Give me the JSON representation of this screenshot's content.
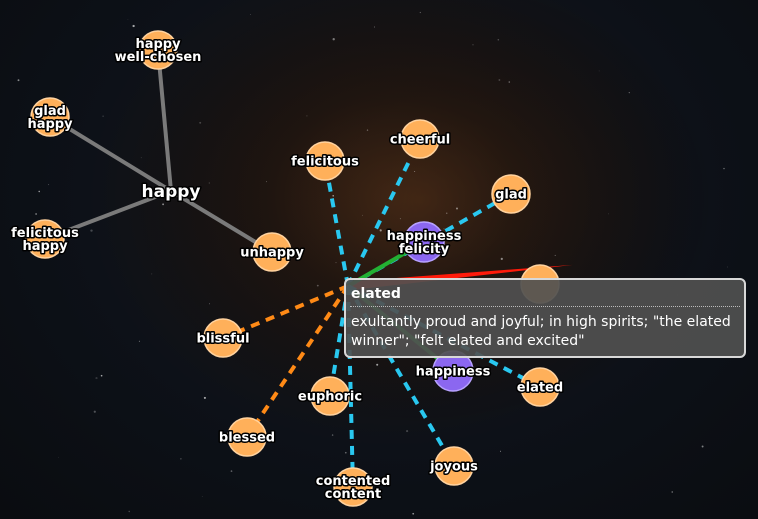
{
  "graph": {
    "colors": {
      "hub_edge": "#7a7a7a",
      "synonym_edge": "#29c8f0",
      "similar_edge": "#ff8a16",
      "derived_edge": "#23b033",
      "antonym_edge": "#ff1a0a",
      "word_node": "#ffb05a",
      "noun_node": "#8b67f0"
    },
    "nodes": [
      {
        "id": "happy_hub",
        "lines": [
          "happy"
        ],
        "kind": "hub"
      },
      {
        "id": "happy_wellchosen",
        "lines": [
          "happy",
          "well-chosen"
        ],
        "kind": "word"
      },
      {
        "id": "glad_happy",
        "lines": [
          "glad",
          "happy"
        ],
        "kind": "word"
      },
      {
        "id": "felicitous_happy",
        "lines": [
          "felicitous",
          "happy"
        ],
        "kind": "word"
      },
      {
        "id": "unhappy",
        "lines": [
          "unhappy"
        ],
        "kind": "word"
      },
      {
        "id": "felicitous",
        "lines": [
          "felicitous"
        ],
        "kind": "word"
      },
      {
        "id": "cheerful",
        "lines": [
          "cheerful"
        ],
        "kind": "word"
      },
      {
        "id": "glad",
        "lines": [
          "glad"
        ],
        "kind": "word"
      },
      {
        "id": "happiness_felicity",
        "lines": [
          "happiness",
          "felicity"
        ],
        "kind": "noun"
      },
      {
        "id": "hidden_right",
        "lines": [],
        "kind": "word"
      },
      {
        "id": "blissful",
        "lines": [
          "blissful"
        ],
        "kind": "word"
      },
      {
        "id": "euphoric",
        "lines": [
          "euphoric"
        ],
        "kind": "word"
      },
      {
        "id": "happiness",
        "lines": [
          "happiness"
        ],
        "kind": "noun"
      },
      {
        "id": "elated_node",
        "lines": [
          "elated"
        ],
        "kind": "word"
      },
      {
        "id": "blessed",
        "lines": [
          "blessed"
        ],
        "kind": "word"
      },
      {
        "id": "joyous",
        "lines": [
          "joyous"
        ],
        "kind": "word"
      },
      {
        "id": "contented_content",
        "lines": [
          "contented",
          "content"
        ],
        "kind": "word"
      }
    ],
    "edges": [
      {
        "from": "happy_hub",
        "to": "happy_wellchosen",
        "type": "hub"
      },
      {
        "from": "happy_hub",
        "to": "glad_happy",
        "type": "hub"
      },
      {
        "from": "happy_hub",
        "to": "felicitous_happy",
        "type": "hub"
      },
      {
        "from": "happy_hub",
        "to": "unhappy",
        "type": "hub"
      },
      {
        "from": "center",
        "to": "unhappy",
        "type": "antonym"
      },
      {
        "from": "center",
        "to": "felicitous",
        "type": "synonym"
      },
      {
        "from": "center",
        "to": "cheerful",
        "type": "synonym"
      },
      {
        "from": "center",
        "to": "glad",
        "type": "synonym"
      },
      {
        "from": "center",
        "to": "happiness_felicity",
        "type": "derived"
      },
      {
        "from": "center",
        "to": "blissful",
        "type": "similar"
      },
      {
        "from": "center",
        "to": "blessed",
        "type": "similar"
      },
      {
        "from": "center",
        "to": "euphoric",
        "type": "synonym"
      },
      {
        "from": "center",
        "to": "happiness",
        "type": "derived"
      },
      {
        "from": "center",
        "to": "elated_node",
        "type": "synonym"
      },
      {
        "from": "center",
        "to": "joyous",
        "type": "synonym"
      },
      {
        "from": "center",
        "to": "contented_content",
        "type": "synonym"
      }
    ]
  },
  "tooltip": {
    "word": "elated",
    "definition": "exultantly proud and joyful; in high spirits; \"the elated winner\"; \"felt elated and excited\""
  }
}
